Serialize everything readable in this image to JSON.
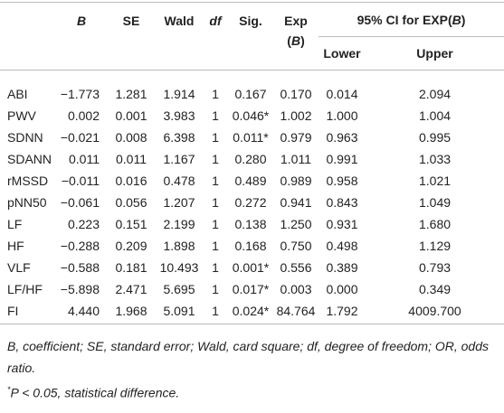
{
  "table": {
    "header": {
      "row1": [
        [
          {
            "text": "B",
            "italic": true
          }
        ],
        [
          {
            "text": "SE"
          }
        ],
        [
          {
            "text": "Wald"
          }
        ],
        [
          {
            "text": "df",
            "italic": true
          }
        ],
        [
          {
            "text": "Sig."
          }
        ],
        [
          {
            "text": "Exp ("
          },
          {
            "text": "B",
            "italic": true
          },
          {
            "text": ")"
          }
        ],
        [
          {
            "text": "95% CI for EXP("
          },
          {
            "text": "B",
            "italic": true
          },
          {
            "text": ")"
          }
        ]
      ],
      "row2": [
        "Lower",
        "Upper"
      ]
    },
    "rows": [
      [
        "ABI",
        "−1.773",
        "1.281",
        "1.914",
        "1",
        "0.167",
        "0.170",
        "0.014",
        "2.094"
      ],
      [
        "PWV",
        "0.002",
        "0.001",
        "3.983",
        "1",
        "0.046*",
        "1.002",
        "1.000",
        "1.004"
      ],
      [
        "SDNN",
        "−0.021",
        "0.008",
        "6.398",
        "1",
        "0.011*",
        "0.979",
        "0.963",
        "0.995"
      ],
      [
        "SDANN",
        "0.011",
        "0.011",
        "1.167",
        "1",
        "0.280",
        "1.011",
        "0.991",
        "1.033"
      ],
      [
        "rMSSD",
        "−0.011",
        "0.016",
        "0.478",
        "1",
        "0.489",
        "0.989",
        "0.958",
        "1.021"
      ],
      [
        "pNN50",
        "−0.061",
        "0.056",
        "1.207",
        "1",
        "0.272",
        "0.941",
        "0.843",
        "1.049"
      ],
      [
        "LF",
        "0.223",
        "0.151",
        "2.199",
        "1",
        "0.138",
        "1.250",
        "0.931",
        "1.680"
      ],
      [
        "HF",
        "−0.288",
        "0.209",
        "1.898",
        "1",
        "0.168",
        "0.750",
        "0.498",
        "1.129"
      ],
      [
        "VLF",
        "−0.588",
        "0.181",
        "10.493",
        "1",
        "0.001*",
        "0.556",
        "0.389",
        "0.793"
      ],
      [
        "LF/HF",
        "−5.898",
        "2.471",
        "5.695",
        "1",
        "0.017*",
        "0.003",
        "0.000",
        "0.349"
      ],
      [
        "FI",
        "4.440",
        "1.968",
        "5.091",
        "1",
        "0.024*",
        "84.764",
        "1.792",
        "4009.700"
      ]
    ],
    "footnotes": [
      [
        {
          "text": "B, coefficient; SE, standard error; Wald, card square; df, degree of freedom; OR, odds ratio."
        }
      ],
      [
        {
          "text": "*",
          "sup": true
        },
        {
          "text": "P < 0.05, statistical difference."
        }
      ]
    ]
  }
}
